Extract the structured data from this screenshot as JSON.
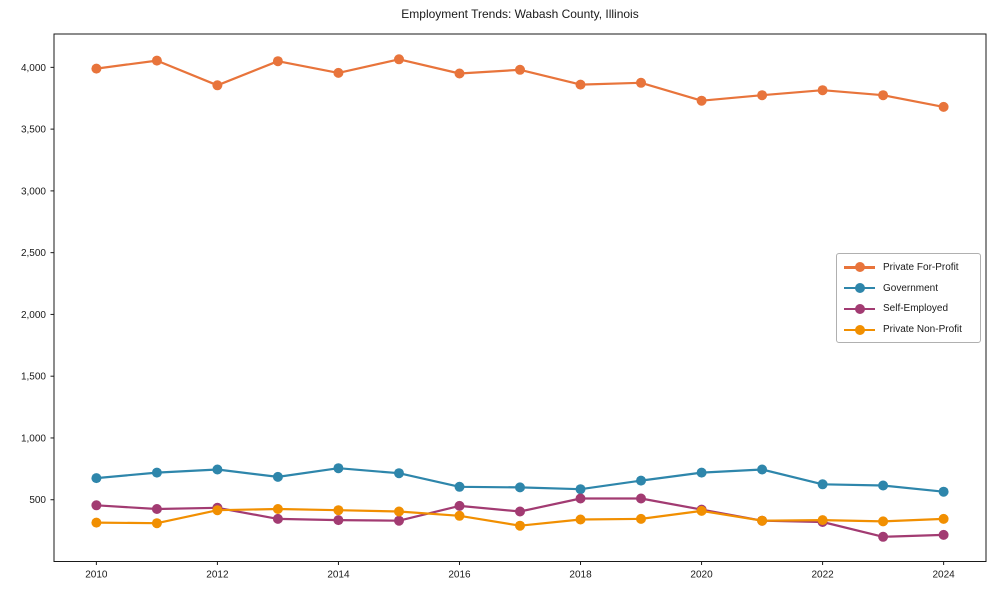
{
  "chart_data": {
    "type": "line",
    "title": "Employment Trends: Wabash County, Illinois",
    "xlabel": "",
    "ylabel": "",
    "grid": false,
    "legend_position": "center right",
    "marker": "circle",
    "axis_color": "#1a1a1a",
    "legend_border_color": "#b0b0b0",
    "xlim": [
      2009.3,
      2024.7
    ],
    "ylim": [
      0,
      4270
    ],
    "x": [
      2010,
      2011,
      2012,
      2013,
      2014,
      2015,
      2016,
      2017,
      2018,
      2019,
      2020,
      2021,
      2022,
      2023,
      2024
    ],
    "series": [
      {
        "name": "Private For-Profit",
        "color": "#e8743b",
        "values": [
          3990,
          4055,
          3855,
          4050,
          3955,
          4065,
          3950,
          3980,
          3860,
          3875,
          3730,
          3775,
          3815,
          3775,
          3680
        ]
      },
      {
        "name": "Government",
        "color": "#2e86ab",
        "values": [
          675,
          720,
          745,
          685,
          755,
          715,
          605,
          600,
          585,
          655,
          720,
          745,
          625,
          615,
          565
        ]
      },
      {
        "name": "Self-Employed",
        "color": "#a23b72",
        "values": [
          455,
          425,
          435,
          345,
          335,
          330,
          450,
          405,
          510,
          510,
          420,
          330,
          320,
          200,
          215
        ]
      },
      {
        "name": "Private Non-Profit",
        "color": "#f18f01",
        "values": [
          315,
          310,
          415,
          425,
          415,
          405,
          370,
          290,
          340,
          345,
          410,
          330,
          335,
          325,
          345
        ]
      }
    ],
    "xticks": {
      "values": [
        2010,
        2012,
        2014,
        2016,
        2018,
        2020,
        2022,
        2024
      ],
      "labels": [
        "2010",
        "2012",
        "2014",
        "2016",
        "2018",
        "2020",
        "2022",
        "2024"
      ]
    },
    "yticks": {
      "values": [
        500,
        1000,
        1500,
        2000,
        2500,
        3000,
        3500,
        4000
      ],
      "labels": [
        "500",
        "1,000",
        "1,500",
        "2,000",
        "2,500",
        "3,000",
        "3,500",
        "4,000"
      ]
    }
  }
}
